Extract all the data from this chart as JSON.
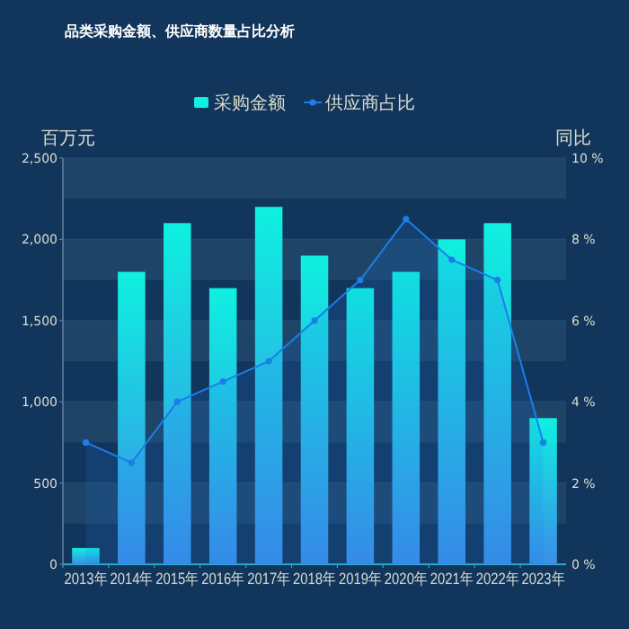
{
  "chart_data": {
    "type": "bar",
    "title": "品类采购金额、供应商数量占比分析",
    "ylabel": "百万元",
    "y2label": "同比",
    "categories": [
      "2013年",
      "2014年",
      "2015年",
      "2016年",
      "2017年",
      "2018年",
      "2019年",
      "2020年",
      "2021年",
      "2022年",
      "2023年"
    ],
    "series": [
      {
        "name": "采购金额",
        "color": "#0ff0e0",
        "values": [
          100,
          1800,
          2100,
          1700,
          2200,
          1900,
          1700,
          1800,
          2000,
          2100,
          900
        ]
      },
      {
        "name": "供应商占比",
        "type": "area",
        "axis": "y2",
        "color": "#1a7fe8",
        "marker": "circle",
        "values": [
          3,
          2.5,
          4,
          4.5,
          5,
          6,
          7,
          8.5,
          7.5,
          7,
          3
        ]
      }
    ],
    "ylim": [
      0,
      2500
    ],
    "yticks": [
      0,
      {
        "value": 500,
        "label": "500"
      },
      {
        "value": 1000,
        "label": "1,000"
      },
      {
        "value": 1500,
        "label": "1,500"
      },
      {
        "value": 2000,
        "label": "2,000"
      },
      {
        "value": 2500,
        "label": "2,500"
      }
    ],
    "y2lim": [
      0,
      10
    ],
    "y2ticks": [
      {
        "value": 0,
        "label": "0 %"
      },
      {
        "value": 2,
        "label": "2 %"
      },
      {
        "value": 4,
        "label": "4 %"
      },
      {
        "value": 6,
        "label": "6 %"
      },
      {
        "value": 8,
        "label": "8 %"
      },
      {
        "value": 10,
        "label": "10 %"
      }
    ],
    "bands": [
      {
        "axis": "y",
        "from": 250,
        "to": 500,
        "color": "#1e4468"
      },
      {
        "axis": "y",
        "from": 750,
        "to": 1000,
        "color": "#1e4468"
      },
      {
        "axis": "y",
        "from": 1250,
        "to": 1500,
        "color": "#1e4468"
      },
      {
        "axis": "y",
        "from": 1750,
        "to": 2000,
        "color": "#1e4468"
      },
      {
        "axis": "y",
        "from": 2250,
        "to": 2500,
        "color": "#1e4468"
      }
    ],
    "grid": "y",
    "legend": "top"
  }
}
